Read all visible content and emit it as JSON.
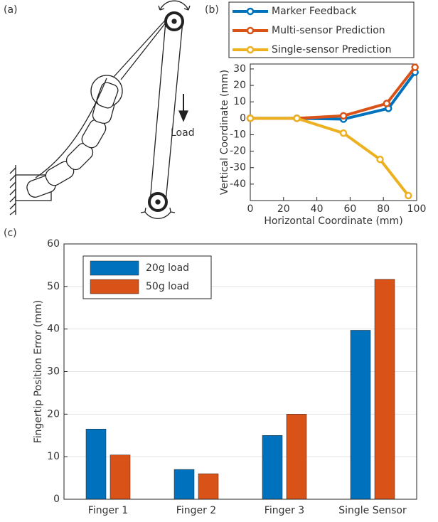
{
  "panels": {
    "a": "(a)",
    "b": "(b)",
    "c": "(c)"
  },
  "diagram": {
    "label": "Load"
  },
  "chart_data": [
    {
      "type": "line",
      "xlabel": "Horizontal Coordinate (mm)",
      "ylabel": "Vertical Coordinate (mm)",
      "xlim": [
        0,
        100
      ],
      "xticks": [
        0,
        20,
        40,
        60,
        80,
        100
      ],
      "ylim": [
        -50,
        33
      ],
      "yticks": [
        -40,
        -30,
        -20,
        -10,
        0,
        10,
        20,
        30
      ],
      "grid": false,
      "legend": "top-right",
      "series": [
        {
          "name": "Marker Feedback",
          "color": "#0072bd",
          "x": [
            0,
            28,
            56,
            83,
            99
          ],
          "values": [
            0,
            0,
            -0.5,
            6,
            28
          ]
        },
        {
          "name": "Multi-sensor Prediction",
          "color": "#d95319",
          "x": [
            0,
            28,
            56,
            82,
            99
          ],
          "values": [
            0,
            0,
            1.5,
            9,
            31
          ]
        },
        {
          "name": "Single-sensor Prediction",
          "color": "#edb120",
          "x": [
            0,
            28,
            56,
            78,
            95
          ],
          "values": [
            0,
            0,
            -9,
            -25,
            -47
          ]
        }
      ]
    },
    {
      "type": "bar",
      "ylabel": "Fingertip Position Error (mm)",
      "categories": [
        "Finger 1",
        "Finger 2",
        "Finger 3",
        "Single Sensor"
      ],
      "ylim": [
        0,
        60
      ],
      "yticks": [
        0,
        10,
        20,
        30,
        40,
        50,
        60
      ],
      "grid": true,
      "legend": "top-left",
      "series": [
        {
          "name": "20g load",
          "color": "#0072bd",
          "values": [
            16.5,
            7,
            15,
            39.7
          ]
        },
        {
          "name": "50g load",
          "color": "#d95319",
          "values": [
            10.4,
            6,
            20,
            51.7
          ]
        }
      ]
    }
  ]
}
